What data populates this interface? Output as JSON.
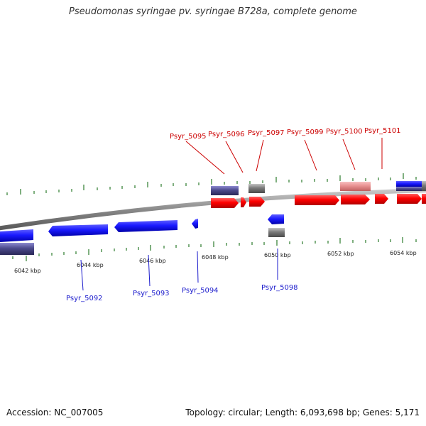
{
  "title": "Pseudomonas syringae pv. syringae B728a, complete genome",
  "footer": {
    "accession": "Accession: NC_007005",
    "summary": "Topology: circular; Length: 6,093,698 bp; Genes: 5,171"
  },
  "colors": {
    "forward_gene": "#ff0000",
    "reverse_gene": "#1a1aff",
    "forward_label": "#cc0000",
    "reverse_label": "#1a1acc",
    "rna_gray": "#777777",
    "pseudo_purple": "#4c4a8c",
    "pink": "#e89090",
    "tick_green": "#2a7a2a",
    "backbone": "#8a8a8a"
  },
  "scale": {
    "unit": "kbp",
    "labels": [
      "6042 kbp",
      "6044 kbp",
      "6046 kbp",
      "6048 kbp",
      "6050 kbp",
      "6052 kbp",
      "6054 kbp"
    ]
  },
  "genes_forward": [
    "Psyr_5095",
    "Psyr_5096",
    "Psyr_5097",
    "Psyr_5099",
    "Psyr_5100",
    "Psyr_5101"
  ],
  "genes_reverse": [
    "Psyr_5092",
    "Psyr_5093",
    "Psyr_5094",
    "Psyr_5098"
  ]
}
